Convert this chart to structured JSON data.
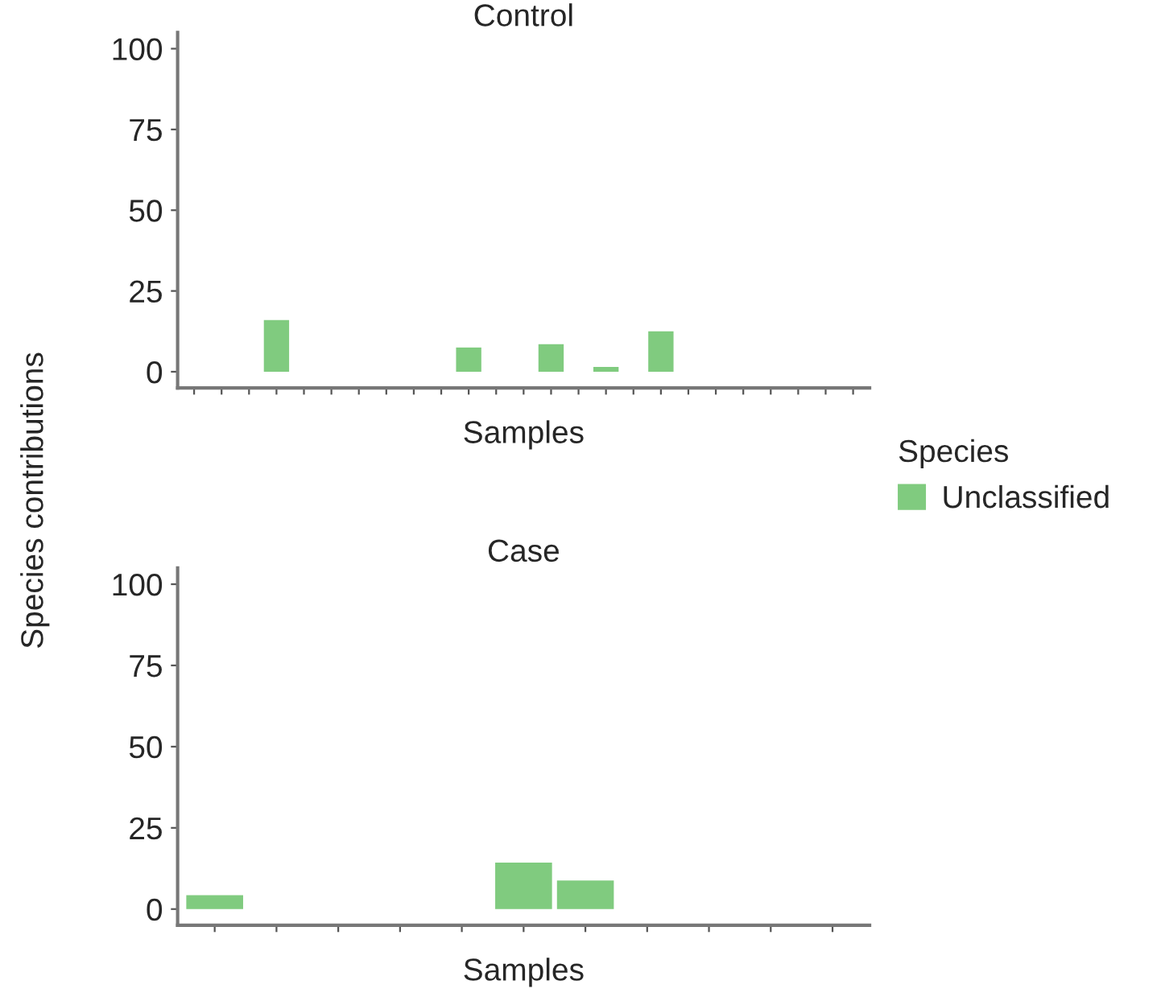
{
  "chart_data": [
    {
      "type": "bar",
      "title": "Control",
      "xlabel": "Samples",
      "ylabel": "Species contributions",
      "legend_title": "Species",
      "legend": "right",
      "categories": [
        null,
        null,
        null,
        null,
        null,
        null,
        null,
        null,
        null,
        null,
        null,
        null,
        null,
        null,
        null,
        null,
        null,
        null,
        null,
        null,
        null,
        null,
        null,
        null,
        null
      ],
      "series": [
        {
          "name": "Unclassified",
          "color": "#80cb7f",
          "values": [
            null,
            null,
            null,
            16,
            null,
            null,
            null,
            null,
            null,
            null,
            7.5,
            null,
            null,
            8.5,
            null,
            1.5,
            null,
            12.5,
            null,
            null,
            null,
            null,
            null,
            null,
            null
          ]
        }
      ],
      "ylim": [
        -5,
        105
      ],
      "yticks": [
        0,
        25,
        50,
        75,
        100
      ],
      "grid": false
    },
    {
      "type": "bar",
      "title": "Case",
      "xlabel": "Samples",
      "categories": [
        null,
        null,
        null,
        null,
        null,
        null,
        null,
        null,
        null,
        null,
        null
      ],
      "series": [
        {
          "color": "#80cb7f",
          "values": [
            4.3,
            null,
            null,
            null,
            null,
            14.3,
            8.8,
            null,
            null,
            null,
            null
          ]
        }
      ],
      "ylim": [
        -5,
        105
      ],
      "yticks": [
        0,
        25,
        50,
        75,
        100
      ],
      "grid": false
    }
  ]
}
